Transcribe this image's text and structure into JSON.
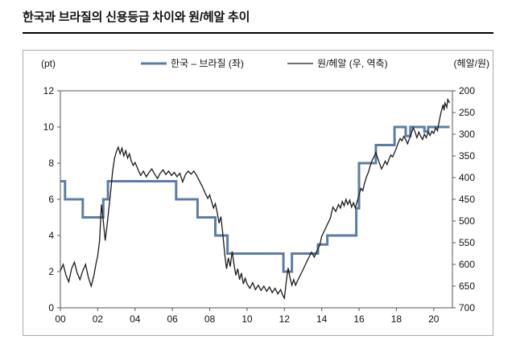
{
  "page": {
    "title": "한국과 브라질의 신용등급 차이와 원/헤알 추이"
  },
  "chart_data": {
    "type": "line",
    "title": "한국과 브라질의 신용등급 차이와 원/헤알 추이",
    "x_axis": {
      "min": 2000,
      "max": 2021,
      "tick_years": [
        2000,
        2002,
        2004,
        2006,
        2008,
        2010,
        2012,
        2014,
        2016,
        2018,
        2020
      ],
      "tick_labels": [
        "00",
        "02",
        "04",
        "06",
        "08",
        "10",
        "12",
        "14",
        "16",
        "18",
        "20"
      ]
    },
    "left_axis": {
      "label": "(pt)",
      "min": 0,
      "max": 12,
      "ticks": [
        0,
        2,
        4,
        6,
        8,
        10,
        12
      ]
    },
    "right_axis": {
      "label": "(헤알/원)",
      "min": 200,
      "max": 700,
      "inverted": true,
      "ticks": [
        200,
        250,
        300,
        350,
        400,
        450,
        500,
        550,
        600,
        650,
        700
      ]
    },
    "legend": [
      {
        "name": "한국 – 브라질 (좌)",
        "color": "#5b7da5",
        "width": 3
      },
      {
        "name": "원/헤알 (우, 역축)",
        "color": "#1a1a1a",
        "width": 1.3
      }
    ],
    "series": [
      {
        "id": "series-rating-gap",
        "name": "한국 – 브라질 (좌)",
        "axis": "left",
        "type": "step",
        "color": "#5b7da5",
        "stroke_width": 3,
        "x_end": 2020.85,
        "points": [
          [
            2000.0,
            7
          ],
          [
            2000.25,
            6
          ],
          [
            2001.2,
            5
          ],
          [
            2002.3,
            6
          ],
          [
            2002.55,
            7
          ],
          [
            2006.2,
            6
          ],
          [
            2007.35,
            5
          ],
          [
            2008.3,
            4
          ],
          [
            2008.95,
            3
          ],
          [
            2011.95,
            2
          ],
          [
            2012.4,
            3
          ],
          [
            2013.8,
            3.5
          ],
          [
            2014.3,
            4
          ],
          [
            2015.85,
            5.5
          ],
          [
            2016.0,
            8
          ],
          [
            2016.9,
            9
          ],
          [
            2017.9,
            10
          ],
          [
            2018.5,
            9.5
          ],
          [
            2018.75,
            10
          ],
          [
            2019.5,
            9.75
          ],
          [
            2019.7,
            10
          ]
        ]
      },
      {
        "id": "series-won-real",
        "name": "원/헤알 (우, 역축)",
        "axis": "right",
        "type": "line",
        "color": "#1a1a1a",
        "stroke_width": 1.3,
        "points": [
          [
            2000.0,
            615
          ],
          [
            2000.15,
            600
          ],
          [
            2000.3,
            625
          ],
          [
            2000.45,
            640
          ],
          [
            2000.6,
            610
          ],
          [
            2000.75,
            595
          ],
          [
            2000.9,
            620
          ],
          [
            2001.05,
            635
          ],
          [
            2001.2,
            615
          ],
          [
            2001.35,
            600
          ],
          [
            2001.5,
            630
          ],
          [
            2001.65,
            650
          ],
          [
            2001.8,
            625
          ],
          [
            2001.9,
            600
          ],
          [
            2002.0,
            580
          ],
          [
            2002.1,
            545
          ],
          [
            2002.2,
            462
          ],
          [
            2002.3,
            500
          ],
          [
            2002.4,
            545
          ],
          [
            2002.5,
            510
          ],
          [
            2002.6,
            470
          ],
          [
            2002.7,
            430
          ],
          [
            2002.8,
            385
          ],
          [
            2002.9,
            355
          ],
          [
            2003.0,
            340
          ],
          [
            2003.1,
            330
          ],
          [
            2003.2,
            345
          ],
          [
            2003.3,
            332
          ],
          [
            2003.4,
            350
          ],
          [
            2003.5,
            338
          ],
          [
            2003.6,
            355
          ],
          [
            2003.7,
            345
          ],
          [
            2003.8,
            362
          ],
          [
            2003.9,
            372
          ],
          [
            2004.0,
            365
          ],
          [
            2004.15,
            380
          ],
          [
            2004.3,
            395
          ],
          [
            2004.45,
            385
          ],
          [
            2004.6,
            398
          ],
          [
            2004.75,
            388
          ],
          [
            2004.9,
            380
          ],
          [
            2005.05,
            392
          ],
          [
            2005.2,
            402
          ],
          [
            2005.35,
            390
          ],
          [
            2005.5,
            382
          ],
          [
            2005.65,
            393
          ],
          [
            2005.8,
            385
          ],
          [
            2005.95,
            395
          ],
          [
            2006.1,
            388
          ],
          [
            2006.25,
            398
          ],
          [
            2006.4,
            390
          ],
          [
            2006.55,
            410
          ],
          [
            2006.7,
            393
          ],
          [
            2006.85,
            385
          ],
          [
            2007.0,
            392
          ],
          [
            2007.15,
            385
          ],
          [
            2007.3,
            395
          ],
          [
            2007.45,
            408
          ],
          [
            2007.6,
            420
          ],
          [
            2007.75,
            435
          ],
          [
            2007.9,
            448
          ],
          [
            2008.0,
            440
          ],
          [
            2008.1,
            455
          ],
          [
            2008.2,
            470
          ],
          [
            2008.3,
            460
          ],
          [
            2008.4,
            480
          ],
          [
            2008.5,
            505
          ],
          [
            2008.6,
            490
          ],
          [
            2008.7,
            530
          ],
          [
            2008.8,
            575
          ],
          [
            2008.9,
            610
          ],
          [
            2009.0,
            585
          ],
          [
            2009.1,
            605
          ],
          [
            2009.2,
            570
          ],
          [
            2009.3,
            600
          ],
          [
            2009.4,
            625
          ],
          [
            2009.5,
            610
          ],
          [
            2009.6,
            635
          ],
          [
            2009.7,
            620
          ],
          [
            2009.8,
            645
          ],
          [
            2009.9,
            632
          ],
          [
            2010.0,
            645
          ],
          [
            2010.15,
            655
          ],
          [
            2010.3,
            642
          ],
          [
            2010.45,
            658
          ],
          [
            2010.6,
            648
          ],
          [
            2010.75,
            660
          ],
          [
            2010.9,
            650
          ],
          [
            2011.05,
            662
          ],
          [
            2011.2,
            652
          ],
          [
            2011.35,
            665
          ],
          [
            2011.5,
            655
          ],
          [
            2011.65,
            668
          ],
          [
            2011.8,
            658
          ],
          [
            2011.9,
            670
          ],
          [
            2012.0,
            678
          ],
          [
            2012.1,
            640
          ],
          [
            2012.2,
            608
          ],
          [
            2012.3,
            630
          ],
          [
            2012.4,
            648
          ],
          [
            2012.5,
            635
          ],
          [
            2012.6,
            648
          ],
          [
            2012.7,
            638
          ],
          [
            2012.85,
            625
          ],
          [
            2013.0,
            612
          ],
          [
            2013.15,
            598
          ],
          [
            2013.3,
            585
          ],
          [
            2013.45,
            572
          ],
          [
            2013.6,
            583
          ],
          [
            2013.75,
            568
          ],
          [
            2013.9,
            555
          ],
          [
            2014.0,
            535
          ],
          [
            2014.15,
            522
          ],
          [
            2014.3,
            508
          ],
          [
            2014.45,
            495
          ],
          [
            2014.6,
            468
          ],
          [
            2014.75,
            478
          ],
          [
            2014.9,
            462
          ],
          [
            2015.0,
            470
          ],
          [
            2015.1,
            455
          ],
          [
            2015.2,
            465
          ],
          [
            2015.3,
            450
          ],
          [
            2015.4,
            462
          ],
          [
            2015.5,
            452
          ],
          [
            2015.6,
            468
          ],
          [
            2015.7,
            458
          ],
          [
            2015.8,
            470
          ],
          [
            2015.9,
            455
          ],
          [
            2016.0,
            440
          ],
          [
            2016.1,
            425
          ],
          [
            2016.2,
            430
          ],
          [
            2016.3,
            412
          ],
          [
            2016.4,
            398
          ],
          [
            2016.5,
            388
          ],
          [
            2016.6,
            372
          ],
          [
            2016.7,
            360
          ],
          [
            2016.8,
            352
          ],
          [
            2016.9,
            342
          ],
          [
            2017.0,
            355
          ],
          [
            2017.1,
            368
          ],
          [
            2017.2,
            380
          ],
          [
            2017.3,
            372
          ],
          [
            2017.4,
            362
          ],
          [
            2017.5,
            370
          ],
          [
            2017.6,
            358
          ],
          [
            2017.7,
            348
          ],
          [
            2017.8,
            352
          ],
          [
            2017.9,
            342
          ],
          [
            2018.0,
            332
          ],
          [
            2018.1,
            320
          ],
          [
            2018.2,
            310
          ],
          [
            2018.3,
            315
          ],
          [
            2018.4,
            305
          ],
          [
            2018.5,
            312
          ],
          [
            2018.6,
            322
          ],
          [
            2018.7,
            310
          ],
          [
            2018.8,
            298
          ],
          [
            2018.9,
            285
          ],
          [
            2019.0,
            295
          ],
          [
            2019.1,
            308
          ],
          [
            2019.2,
            295
          ],
          [
            2019.3,
            305
          ],
          [
            2019.4,
            312
          ],
          [
            2019.5,
            300
          ],
          [
            2019.6,
            308
          ],
          [
            2019.7,
            295
          ],
          [
            2019.8,
            303
          ],
          [
            2019.9,
            293
          ],
          [
            2020.0,
            298
          ],
          [
            2020.1,
            285
          ],
          [
            2020.2,
            292
          ],
          [
            2020.3,
            268
          ],
          [
            2020.4,
            248
          ],
          [
            2020.5,
            232
          ],
          [
            2020.55,
            245
          ],
          [
            2020.6,
            228
          ],
          [
            2020.7,
            238
          ],
          [
            2020.75,
            220
          ],
          [
            2020.85,
            228
          ]
        ]
      }
    ]
  }
}
